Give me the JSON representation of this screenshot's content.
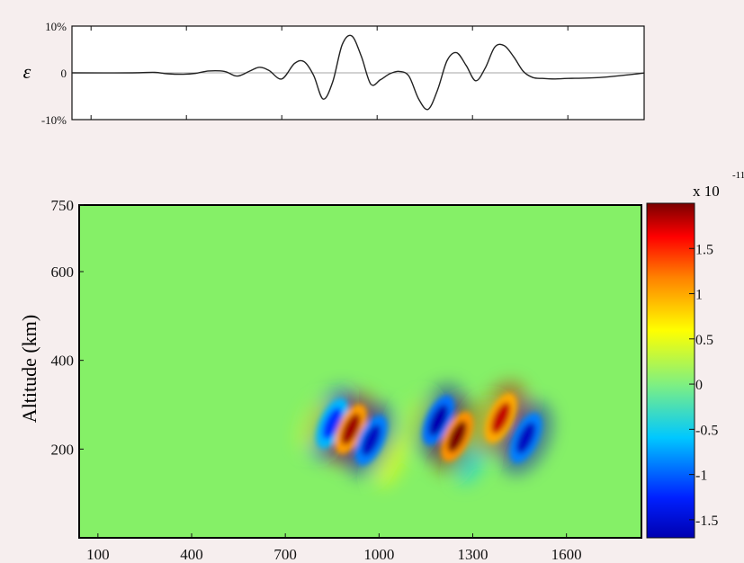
{
  "chart_data": [
    {
      "type": "line",
      "ylabel": "ε",
      "ylim": [
        -10,
        10
      ],
      "xlim": [
        40,
        1840
      ],
      "y_ticks": [
        {
          "value": 10,
          "label": "10%"
        },
        {
          "value": 0,
          "label": "0"
        },
        {
          "value": -10,
          "label": "-10%"
        }
      ],
      "series": [
        {
          "x": [
            40,
            230,
            300,
            340,
            390,
            430,
            470,
            520,
            560,
            600,
            630,
            660,
            700,
            740,
            770,
            800,
            830,
            860,
            890,
            920,
            950,
            980,
            1010,
            1040,
            1070,
            1100,
            1130,
            1160,
            1190,
            1220,
            1250,
            1280,
            1310,
            1340,
            1370,
            1400,
            1430,
            1460,
            1490,
            1520,
            1560,
            1600,
            1700,
            1820,
            1840
          ],
          "y": [
            0,
            0,
            0.1,
            -0.2,
            -0.3,
            -0.1,
            0.4,
            0.3,
            -0.7,
            0.4,
            1.2,
            0.5,
            -1.3,
            2.0,
            2.4,
            -0.5,
            -5.6,
            -2.0,
            6.0,
            7.9,
            3.6,
            -2.4,
            -1.5,
            -0.2,
            0.3,
            -0.7,
            -5.5,
            -7.8,
            -3.7,
            2.6,
            4.3,
            1.6,
            -1.7,
            1.0,
            5.5,
            5.8,
            3.4,
            0.3,
            -1.0,
            -1.2,
            -1.3,
            -1.2,
            -1.0,
            -0.2,
            0.0
          ]
        }
      ]
    },
    {
      "type": "heatmap",
      "ylabel": "Altitude (km)",
      "xlim": [
        40,
        1840
      ],
      "ylim": [
        0,
        750
      ],
      "x_ticks": [
        100,
        400,
        700,
        1000,
        1300,
        1600
      ],
      "y_ticks": [
        200,
        400,
        600,
        750
      ],
      "colorbar": {
        "exponent_label": "x 10",
        "exponent_superscript": "-11",
        "range": [
          -1.7,
          2.0
        ],
        "ticks": [
          "1.5",
          "1",
          "0.5",
          "0",
          "-0.5",
          "-1",
          "-1.5"
        ]
      },
      "blobs": [
        {
          "x": 850,
          "y": 258,
          "value": -1.2
        },
        {
          "x": 910,
          "y": 245,
          "value": 1.9
        },
        {
          "x": 975,
          "y": 220,
          "value": -1.6
        },
        {
          "x": 1040,
          "y": 170,
          "value": 0.6
        },
        {
          "x": 1190,
          "y": 265,
          "value": -1.7
        },
        {
          "x": 1250,
          "y": 228,
          "value": 2.0
        },
        {
          "x": 1300,
          "y": 175,
          "value": -0.6
        },
        {
          "x": 1390,
          "y": 270,
          "value": 1.8
        },
        {
          "x": 1470,
          "y": 225,
          "value": -1.6
        },
        {
          "x": 790,
          "y": 255,
          "value": 0.5
        },
        {
          "x": 1110,
          "y": 260,
          "value": 0.35
        },
        {
          "x": 1330,
          "y": 250,
          "value": 0.3
        }
      ]
    }
  ]
}
